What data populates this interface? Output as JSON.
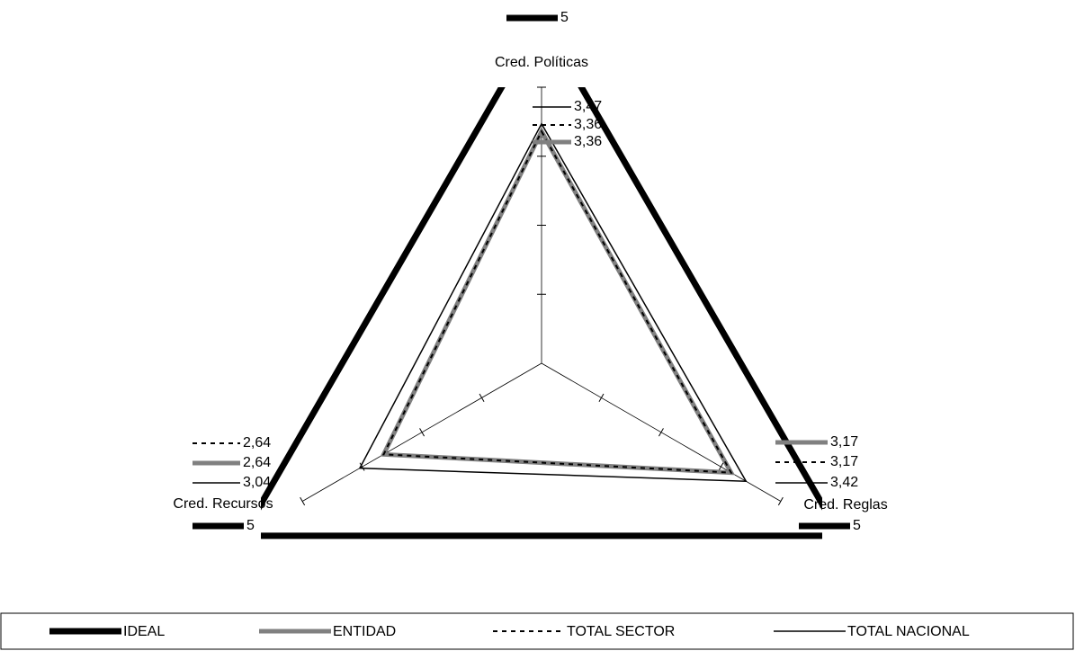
{
  "chart_data": {
    "type": "radar",
    "categories": [
      "Cred. Políticas",
      "Cred. Reglas",
      "Cred. Recursos"
    ],
    "series": [
      {
        "name": "IDEAL",
        "color": "#000000",
        "values": [
          5,
          5,
          5
        ],
        "value_labels": [
          "5",
          "5",
          "5"
        ]
      },
      {
        "name": "ENTIDAD",
        "color": "#808080",
        "values": [
          3.36,
          3.17,
          2.64
        ],
        "value_labels": [
          "3,36",
          "3,17",
          "2,64"
        ]
      },
      {
        "name": "TOTAL SECTOR",
        "color": "#000000",
        "values": [
          3.36,
          3.17,
          2.64
        ],
        "value_labels": [
          "3,36",
          "3,17",
          "2,64"
        ]
      },
      {
        "name": "TOTAL NACIONAL",
        "color": "#000000",
        "values": [
          3.47,
          3.42,
          3.04
        ],
        "value_labels": [
          "3,47",
          "3,42",
          "3,04"
        ]
      }
    ],
    "rlim": [
      0,
      4
    ],
    "rticks": [
      0,
      1,
      2,
      3,
      4
    ],
    "legend": "bottom"
  }
}
